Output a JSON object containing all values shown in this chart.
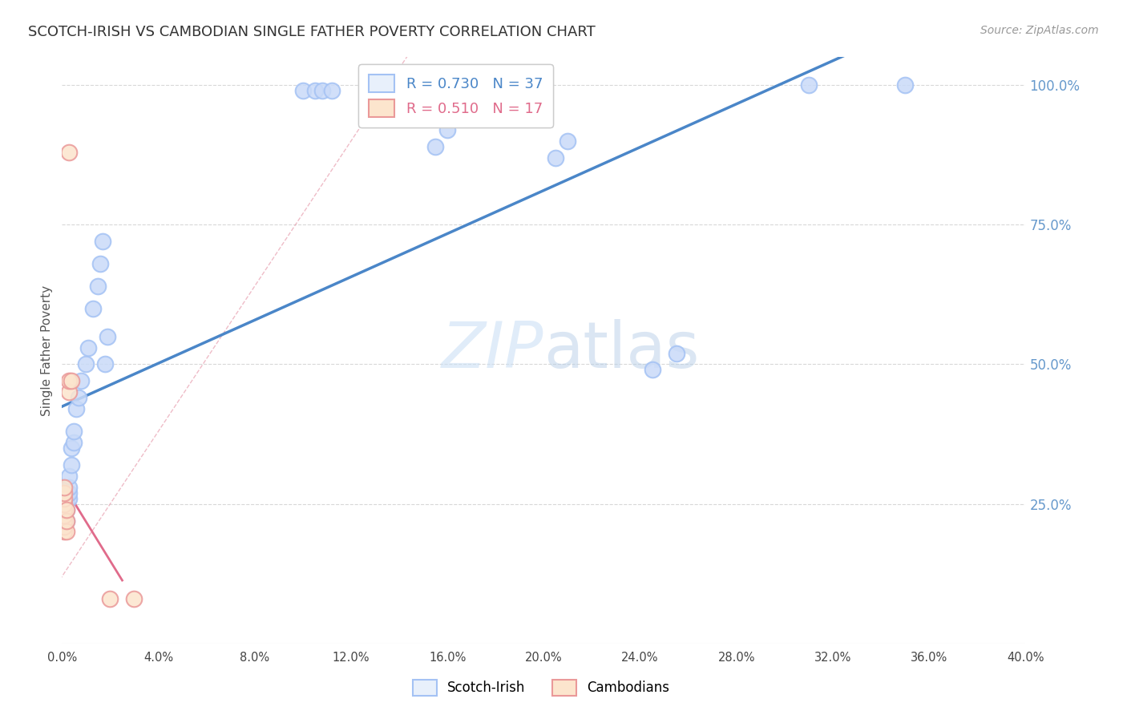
{
  "title": "SCOTCH-IRISH VS CAMBODIAN SINGLE FATHER POVERTY CORRELATION CHART",
  "source": "Source: ZipAtlas.com",
  "ylabel": "Single Father Poverty",
  "scotch_irish_R": 0.73,
  "scotch_irish_N": 37,
  "cambodian_R": 0.51,
  "cambodian_N": 17,
  "scotch_irish_color": "#a4c2f4",
  "cambodian_color": "#ea9999",
  "scotch_irish_fill": "#c9daf8",
  "cambodian_fill": "#fce5cd",
  "scotch_irish_line_color": "#4a86c8",
  "cambodian_line_color": "#e06b8b",
  "watermark_color": "#d6e8f8",
  "scotch_irish_points_x": [
    0.001,
    0.001,
    0.001,
    0.002,
    0.002,
    0.002,
    0.003,
    0.003,
    0.003,
    0.003,
    0.004,
    0.004,
    0.005,
    0.005,
    0.006,
    0.007,
    0.008,
    0.01,
    0.011,
    0.013,
    0.015,
    0.016,
    0.017,
    0.018,
    0.019,
    0.1,
    0.105,
    0.108,
    0.112,
    0.155,
    0.16,
    0.205,
    0.21,
    0.245,
    0.255,
    0.31,
    0.35
  ],
  "scotch_irish_points_y": [
    0.21,
    0.23,
    0.25,
    0.22,
    0.24,
    0.26,
    0.26,
    0.27,
    0.28,
    0.3,
    0.32,
    0.35,
    0.36,
    0.38,
    0.42,
    0.44,
    0.47,
    0.5,
    0.53,
    0.6,
    0.64,
    0.68,
    0.72,
    0.5,
    0.55,
    0.99,
    0.99,
    0.99,
    0.99,
    0.89,
    0.92,
    0.87,
    0.9,
    0.49,
    0.52,
    1.0,
    1.0
  ],
  "cambodian_points_x": [
    0.001,
    0.001,
    0.001,
    0.001,
    0.001,
    0.001,
    0.001,
    0.001,
    0.001,
    0.002,
    0.002,
    0.002,
    0.003,
    0.003,
    0.004,
    0.02,
    0.03
  ],
  "cambodian_points_y": [
    0.2,
    0.21,
    0.22,
    0.23,
    0.24,
    0.25,
    0.26,
    0.27,
    0.28,
    0.2,
    0.22,
    0.24,
    0.45,
    0.47,
    0.47,
    0.08,
    0.08
  ],
  "cambodian_outlier_x": [
    0.003
  ],
  "cambodian_outlier_y": [
    0.88
  ],
  "xlim": [
    0.0,
    0.4
  ],
  "ylim": [
    0.0,
    1.05
  ],
  "x_ticks": [
    0.0,
    0.04,
    0.08,
    0.12,
    0.16,
    0.2,
    0.24,
    0.28,
    0.32,
    0.36,
    0.4
  ],
  "y_ticks_right": [
    1.0,
    0.75,
    0.5,
    0.25
  ],
  "background_color": "#ffffff",
  "grid_color": "#dddddd",
  "legend_box_color": "#e8f0fb",
  "legend_box_color2": "#fce5cd"
}
